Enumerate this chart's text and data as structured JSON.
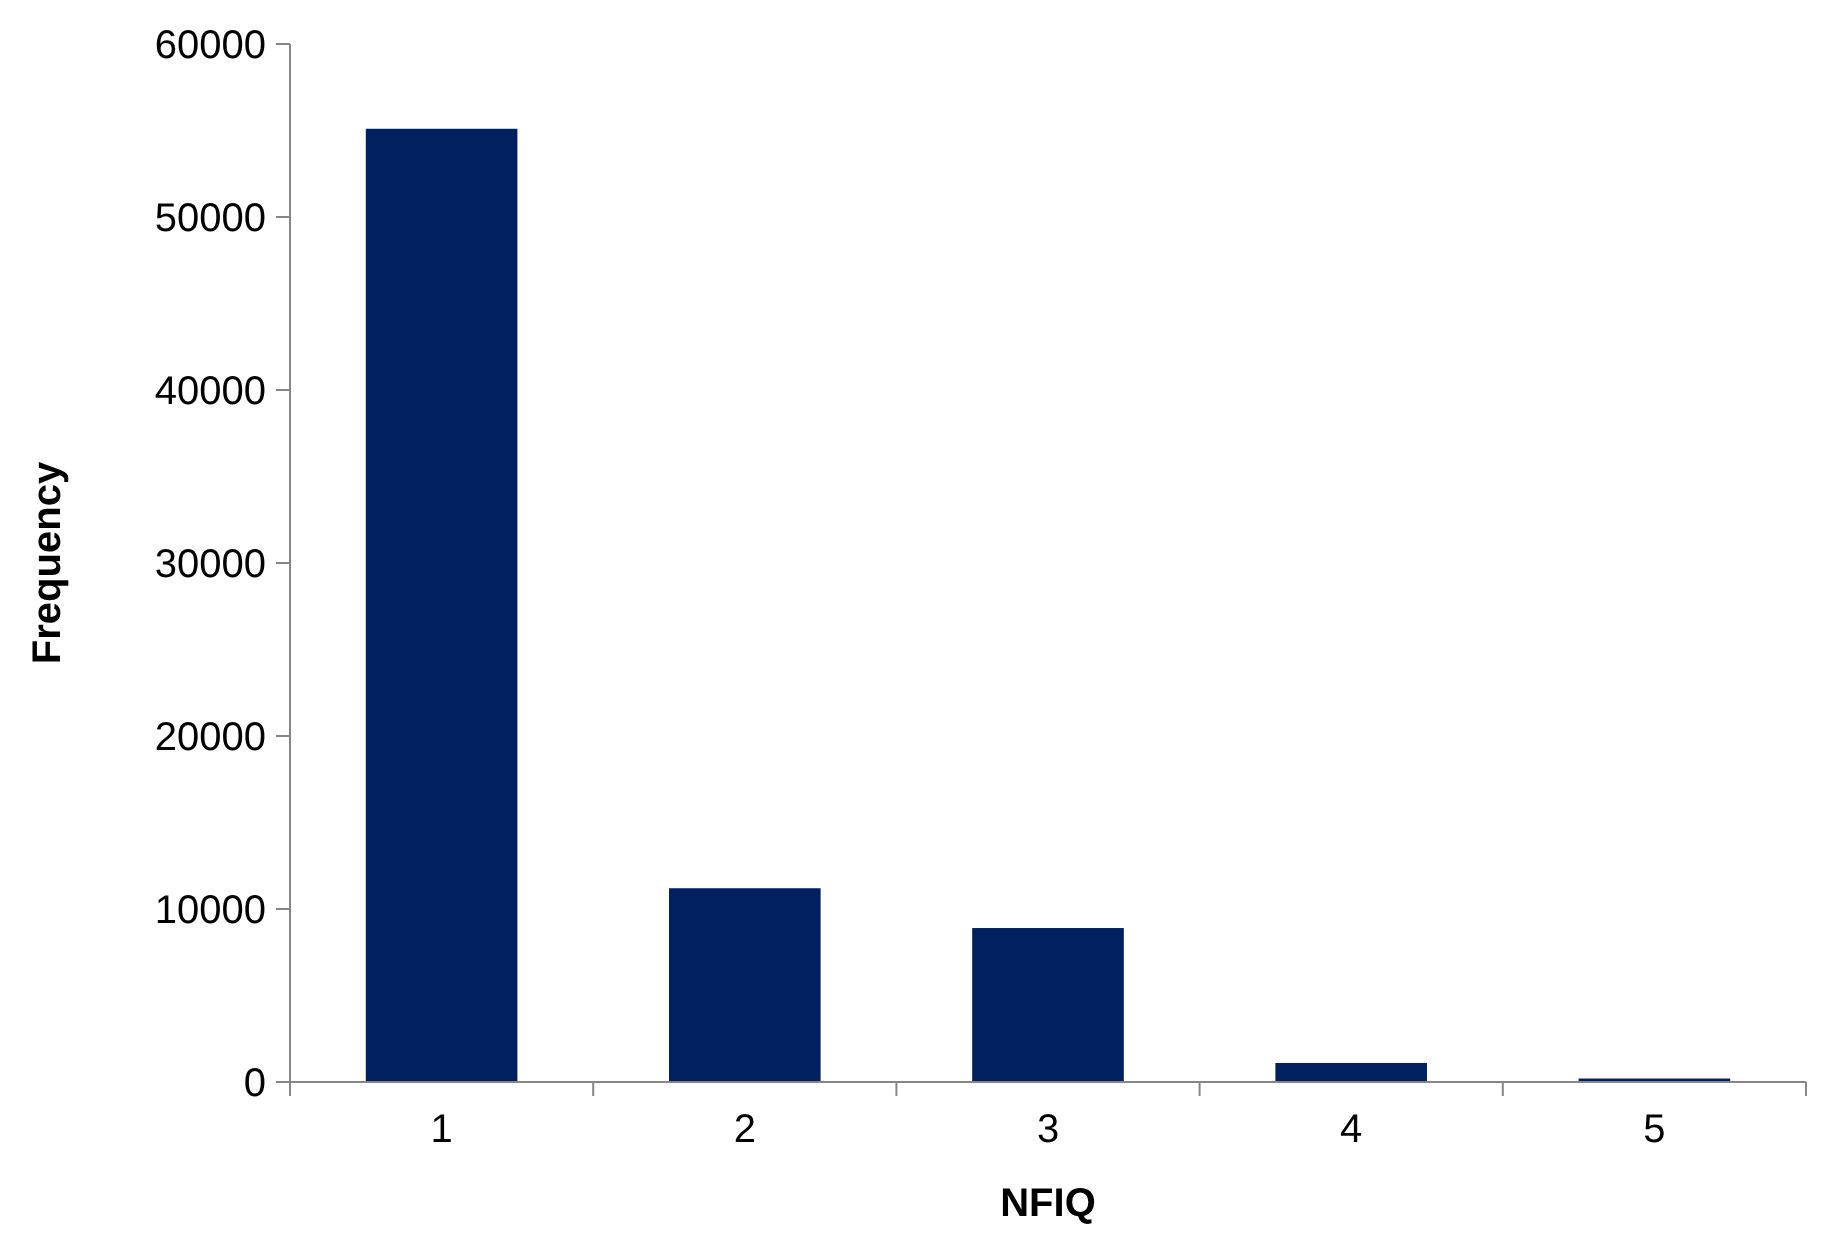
{
  "chart_data": {
    "type": "bar",
    "xlabel": "NFIQ",
    "ylabel": "Frequency",
    "categories": [
      "1",
      "2",
      "3",
      "4",
      "5"
    ],
    "values": [
      55100,
      11200,
      8900,
      1100,
      200
    ],
    "color": "#002060",
    "ylim": [
      0,
      60000
    ],
    "yticks": [
      0,
      10000,
      20000,
      30000,
      40000,
      50000,
      60000
    ],
    "grid": false
  }
}
